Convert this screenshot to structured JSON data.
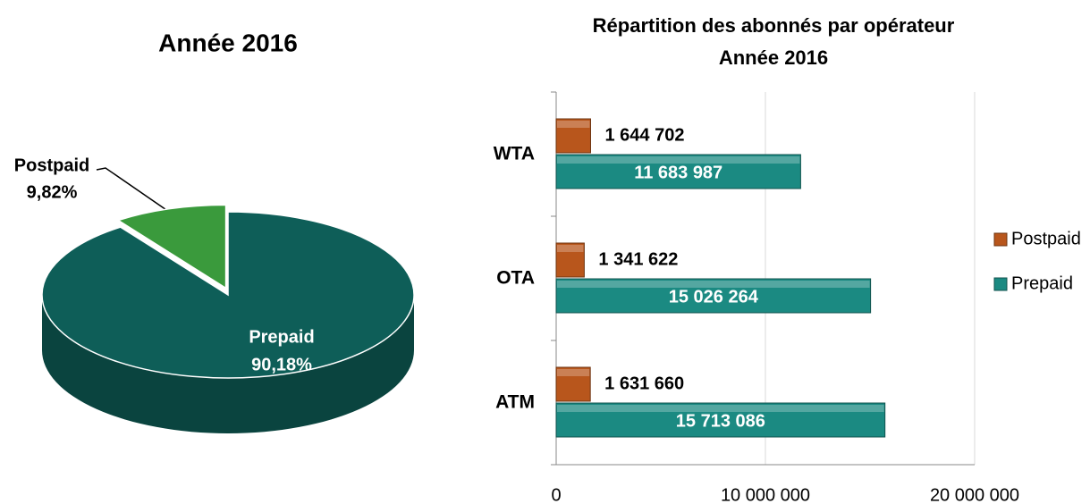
{
  "chart_data": [
    {
      "type": "pie",
      "title": "Année 2016",
      "categories": [
        "Prepaid",
        "Postpaid"
      ],
      "values": [
        90.18,
        9.82
      ],
      "value_labels": [
        "90,18%",
        "9,82%"
      ],
      "colors": [
        "#0e5e58",
        "#3a9a3c"
      ]
    },
    {
      "type": "hbar",
      "title": "Répartition des abonnés par opérateur",
      "subtitle": "Année 2016",
      "categories": [
        "WTA",
        "OTA",
        "ATM"
      ],
      "series": [
        {
          "name": "Postpaid",
          "color": "#b8561c",
          "values": [
            1644702,
            1341622,
            1631660
          ],
          "value_labels": [
            "1 644 702",
            "1 341 622",
            "1 631 660"
          ]
        },
        {
          "name": "Prepaid",
          "color": "#1b8a82",
          "values": [
            11683987,
            15026264,
            15713086
          ],
          "value_labels": [
            "11 683 987",
            "15 026 264",
            "15 713 086"
          ]
        }
      ],
      "xlim": [
        0,
        20000000
      ],
      "xticks": [
        0,
        {
          "value": 10000000,
          "label": "10 000 000"
        },
        {
          "value": 20000000,
          "label": "20 000 000"
        }
      ],
      "grid": true,
      "legend": "right"
    }
  ]
}
